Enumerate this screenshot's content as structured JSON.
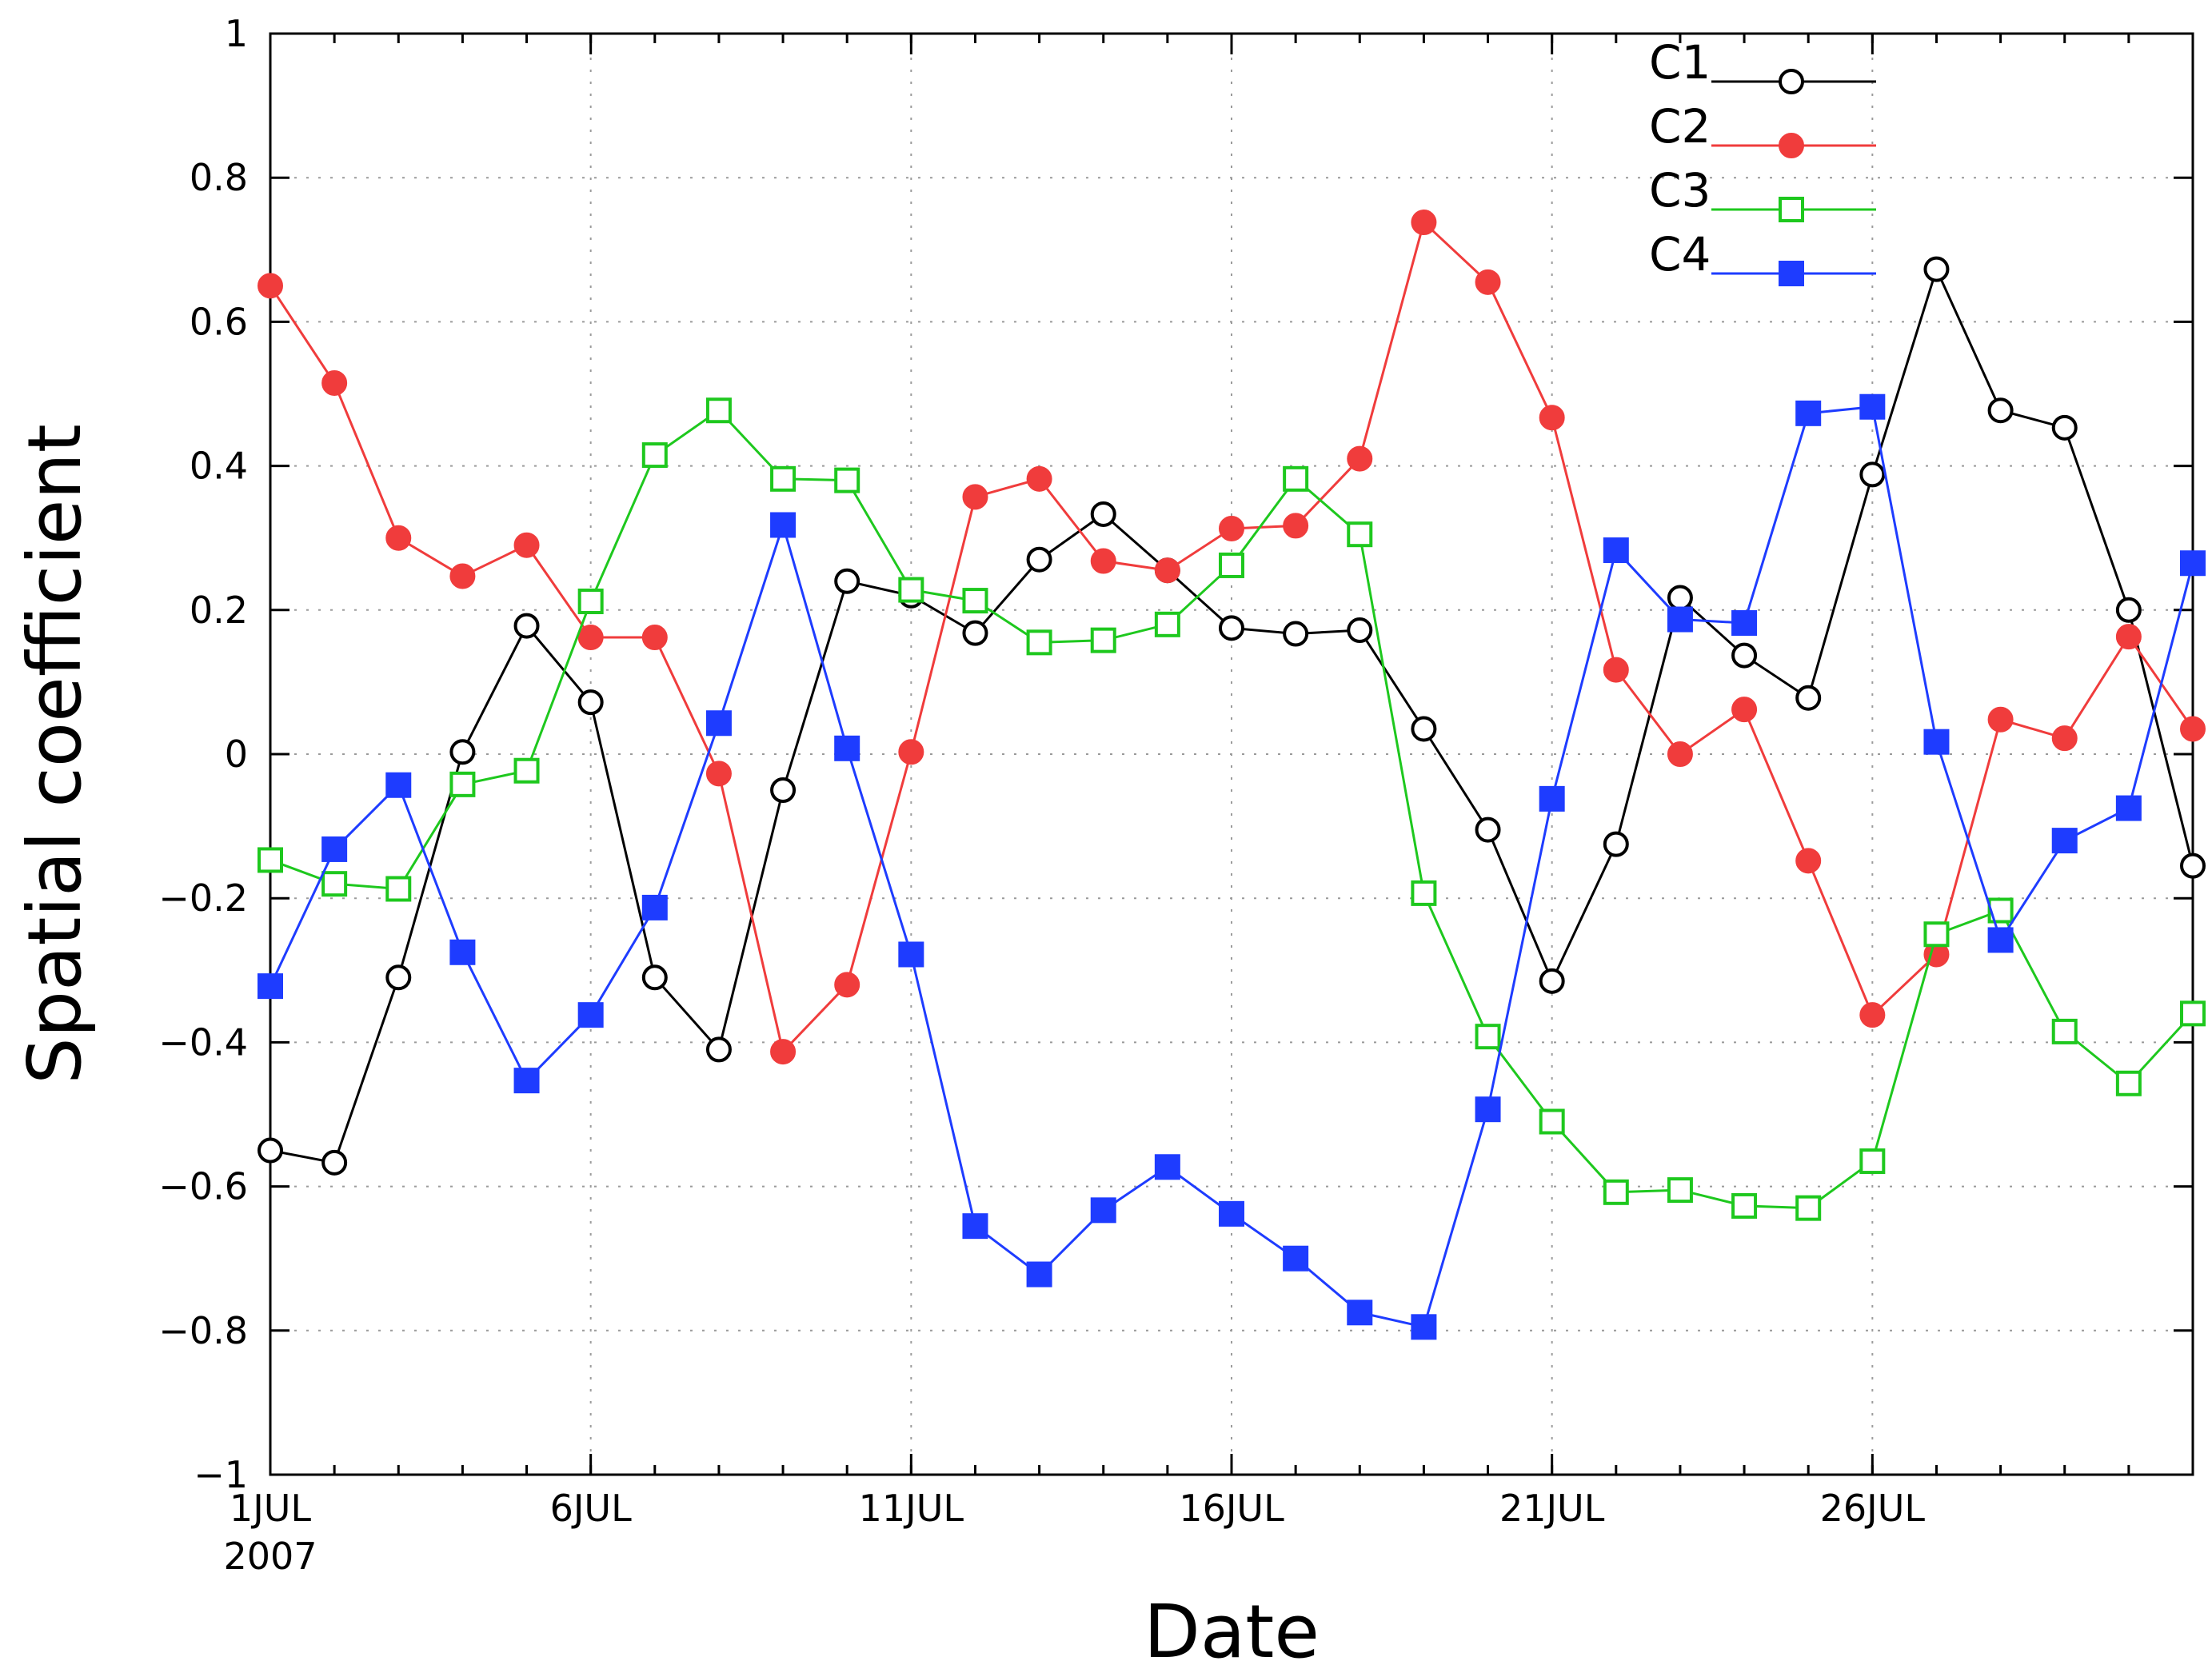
{
  "chart_data": {
    "type": "line",
    "xlabel": "Date",
    "ylabel": "Spatial coefficient",
    "ylim": [
      -1,
      1
    ],
    "xlim": [
      1,
      31
    ],
    "yticks": [
      {
        "value": 1,
        "label": "1"
      },
      {
        "value": 0.8,
        "label": "0.8"
      },
      {
        "value": 0.6,
        "label": "0.6"
      },
      {
        "value": 0.4,
        "label": "0.4"
      },
      {
        "value": 0.2,
        "label": "0.2"
      },
      {
        "value": 0,
        "label": "0"
      },
      {
        "value": -0.2,
        "label": "−0.2"
      },
      {
        "value": -0.4,
        "label": "−0.4"
      },
      {
        "value": -0.6,
        "label": "−0.6"
      },
      {
        "value": -0.8,
        "label": "−0.8"
      },
      {
        "value": -1,
        "label": "−1"
      }
    ],
    "xticks": [
      {
        "value": 1,
        "label": "1JUL",
        "sublabel": "2007"
      },
      {
        "value": 6,
        "label": "6JUL"
      },
      {
        "value": 11,
        "label": "11JUL"
      },
      {
        "value": 16,
        "label": "16JUL"
      },
      {
        "value": 21,
        "label": "21JUL"
      },
      {
        "value": 26,
        "label": "26JUL"
      }
    ],
    "grid": true,
    "legend_position": "top-right",
    "x": [
      1,
      2,
      3,
      4,
      5,
      6,
      7,
      8,
      9,
      10,
      11,
      12,
      13,
      14,
      15,
      16,
      17,
      18,
      19,
      20,
      21,
      22,
      23,
      24,
      25,
      26,
      27,
      28,
      29,
      30,
      31
    ],
    "series": [
      {
        "name": "C1",
        "color": "#000000",
        "marker": "open-circle",
        "values": [
          -0.55,
          -0.567,
          -0.31,
          0.003,
          0.178,
          0.072,
          -0.31,
          -0.41,
          -0.05,
          0.24,
          0.22,
          0.168,
          0.27,
          0.333,
          0.255,
          0.175,
          0.167,
          0.172,
          0.035,
          -0.105,
          -0.315,
          -0.125,
          0.217,
          0.137,
          0.078,
          0.388,
          0.673,
          0.477,
          0.453,
          0.2,
          -0.155
        ]
      },
      {
        "name": "C2",
        "color": "#f03c3c",
        "marker": "filled-circle",
        "values": [
          0.65,
          0.515,
          0.3,
          0.247,
          0.29,
          0.162,
          0.162,
          -0.027,
          -0.413,
          -0.32,
          0.003,
          0.357,
          0.382,
          0.268,
          0.255,
          0.313,
          0.317,
          0.41,
          0.738,
          0.655,
          0.467,
          0.117,
          0.0,
          0.062,
          -0.148,
          -0.362,
          -0.278,
          0.048,
          0.022,
          0.163,
          0.035
        ]
      },
      {
        "name": "C3",
        "color": "#1ec81e",
        "marker": "open-square",
        "values": [
          -0.147,
          -0.18,
          -0.187,
          -0.042,
          -0.023,
          0.212,
          0.415,
          0.477,
          0.382,
          0.38,
          0.228,
          0.213,
          0.155,
          0.158,
          0.18,
          0.262,
          0.382,
          0.305,
          -0.193,
          -0.392,
          -0.51,
          -0.608,
          -0.605,
          -0.627,
          -0.63,
          -0.565,
          -0.25,
          -0.217,
          -0.385,
          -0.457,
          -0.36
        ]
      },
      {
        "name": "C4",
        "color": "#1e3cff",
        "marker": "filled-square",
        "values": [
          -0.322,
          -0.132,
          -0.043,
          -0.275,
          -0.453,
          -0.362,
          -0.213,
          0.043,
          0.318,
          0.008,
          -0.278,
          -0.655,
          -0.722,
          -0.633,
          -0.573,
          -0.638,
          -0.7,
          -0.775,
          -0.795,
          -0.493,
          -0.062,
          0.283,
          0.187,
          0.182,
          0.473,
          0.482,
          0.017,
          -0.258,
          -0.12,
          -0.075,
          0.265
        ]
      }
    ]
  }
}
